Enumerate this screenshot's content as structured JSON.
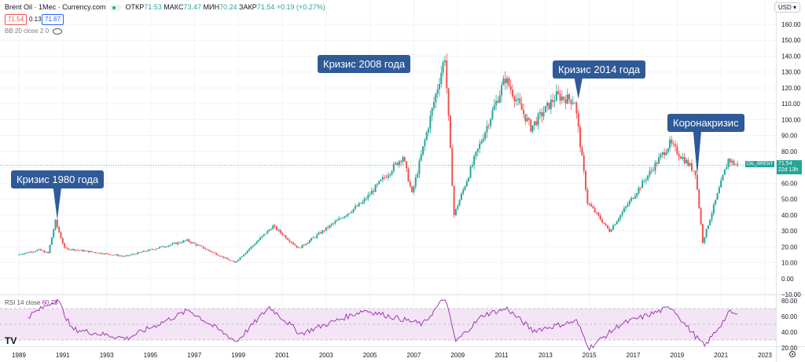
{
  "header": {
    "symbol": "Brent Oil · 1Мес · Currency.com",
    "open_label": "ОТКР",
    "open_value": "71.53",
    "high_label": "МАКС",
    "high_value": "73.47",
    "low_label": "МИН",
    "low_value": "70.24",
    "close_label": "ЗАКР",
    "close_value": "71.54",
    "change": "+0.19 (+0.27%)",
    "bid": "71.54",
    "spread": "0.13",
    "ask": "71.67",
    "indicator_label": "BB 20 close 2 0",
    "currency": "USD"
  },
  "price_tag": {
    "symbol": "OIL_BRENT",
    "price": "71.54",
    "countdown": "22d 13h"
  },
  "rsi": {
    "label": "RSI 14 close",
    "value": "60.79"
  },
  "colors": {
    "up": "#26a69a",
    "down": "#ef5350",
    "callout": "#2f5a98",
    "rsi_line": "#9c27b0",
    "rsi_band": "#f3e5f5"
  },
  "chart_data": {
    "type": "candlestick",
    "x_axis_ticks": [
      "1989",
      "1991",
      "1993",
      "1995",
      "1997",
      "1999",
      "2001",
      "2003",
      "2005",
      "2007",
      "2009",
      "2011",
      "2013",
      "2015",
      "2017",
      "2019",
      "2021",
      "2023"
    ],
    "y_axis_ticks": [
      "160.00",
      "150.00",
      "140.00",
      "130.00",
      "120.00",
      "110.00",
      "100.00",
      "90.00",
      "80.00",
      "70.00",
      "60.00",
      "50.00",
      "40.00",
      "30.00",
      "20.00",
      "10.00",
      "0.00",
      "−10.00"
    ],
    "ylim": [
      -10,
      160
    ],
    "series_anchors": [
      {
        "date": "1989-01",
        "price": 15
      },
      {
        "date": "1990-01",
        "price": 18
      },
      {
        "date": "1990-06",
        "price": 16
      },
      {
        "date": "1990-10",
        "price": 36
      },
      {
        "date": "1991-03",
        "price": 19
      },
      {
        "date": "1993-12",
        "price": 14
      },
      {
        "date": "1996-10",
        "price": 24
      },
      {
        "date": "1998-12",
        "price": 10
      },
      {
        "date": "2000-09",
        "price": 33
      },
      {
        "date": "2001-11",
        "price": 19
      },
      {
        "date": "2004-10",
        "price": 48
      },
      {
        "date": "2006-08",
        "price": 77
      },
      {
        "date": "2007-01",
        "price": 53
      },
      {
        "date": "2008-07",
        "price": 140
      },
      {
        "date": "2008-12",
        "price": 40
      },
      {
        "date": "2009-12",
        "price": 78
      },
      {
        "date": "2011-04",
        "price": 126
      },
      {
        "date": "2012-06",
        "price": 95
      },
      {
        "date": "2013-08",
        "price": 115
      },
      {
        "date": "2014-06",
        "price": 112
      },
      {
        "date": "2015-01",
        "price": 48
      },
      {
        "date": "2016-01",
        "price": 30
      },
      {
        "date": "2018-10",
        "price": 85
      },
      {
        "date": "2019-12",
        "price": 67
      },
      {
        "date": "2020-04",
        "price": 23
      },
      {
        "date": "2021-06",
        "price": 75
      },
      {
        "date": "2021-10",
        "price": 71.54
      }
    ],
    "annotations": [
      {
        "text": "Кризис 1980 года",
        "date": "1990-10",
        "price": 37
      },
      {
        "text": "Кризис 2008 года",
        "date": "2008-07",
        "price": 141
      },
      {
        "text": "Кризис 2014 года",
        "date": "2014-07",
        "price": 113
      },
      {
        "text": "Коронакризис",
        "date": "2019-12",
        "price": 65
      }
    ],
    "rsi": {
      "y_axis_ticks": [
        "80.00",
        "60.00",
        "40.00",
        "20.00"
      ],
      "ylim": [
        15,
        85
      ],
      "upper_band": 70,
      "lower_band": 30,
      "anchors": [
        {
          "date": "1989-06",
          "v": 60
        },
        {
          "date": "1990-10",
          "v": 82
        },
        {
          "date": "1991-06",
          "v": 44
        },
        {
          "date": "1993-12",
          "v": 32
        },
        {
          "date": "1996-10",
          "v": 68
        },
        {
          "date": "1998-12",
          "v": 28
        },
        {
          "date": "2000-06",
          "v": 72
        },
        {
          "date": "2001-11",
          "v": 38
        },
        {
          "date": "2004-10",
          "v": 68
        },
        {
          "date": "2007-06",
          "v": 50
        },
        {
          "date": "2008-06",
          "v": 84
        },
        {
          "date": "2008-12",
          "v": 28
        },
        {
          "date": "2010-03",
          "v": 62
        },
        {
          "date": "2011-04",
          "v": 70
        },
        {
          "date": "2012-06",
          "v": 42
        },
        {
          "date": "2014-06",
          "v": 54
        },
        {
          "date": "2015-01",
          "v": 20
        },
        {
          "date": "2016-06",
          "v": 50
        },
        {
          "date": "2018-10",
          "v": 72
        },
        {
          "date": "2019-06",
          "v": 48
        },
        {
          "date": "2020-04",
          "v": 22
        },
        {
          "date": "2021-06",
          "v": 66
        },
        {
          "date": "2021-10",
          "v": 60.79
        }
      ]
    }
  }
}
